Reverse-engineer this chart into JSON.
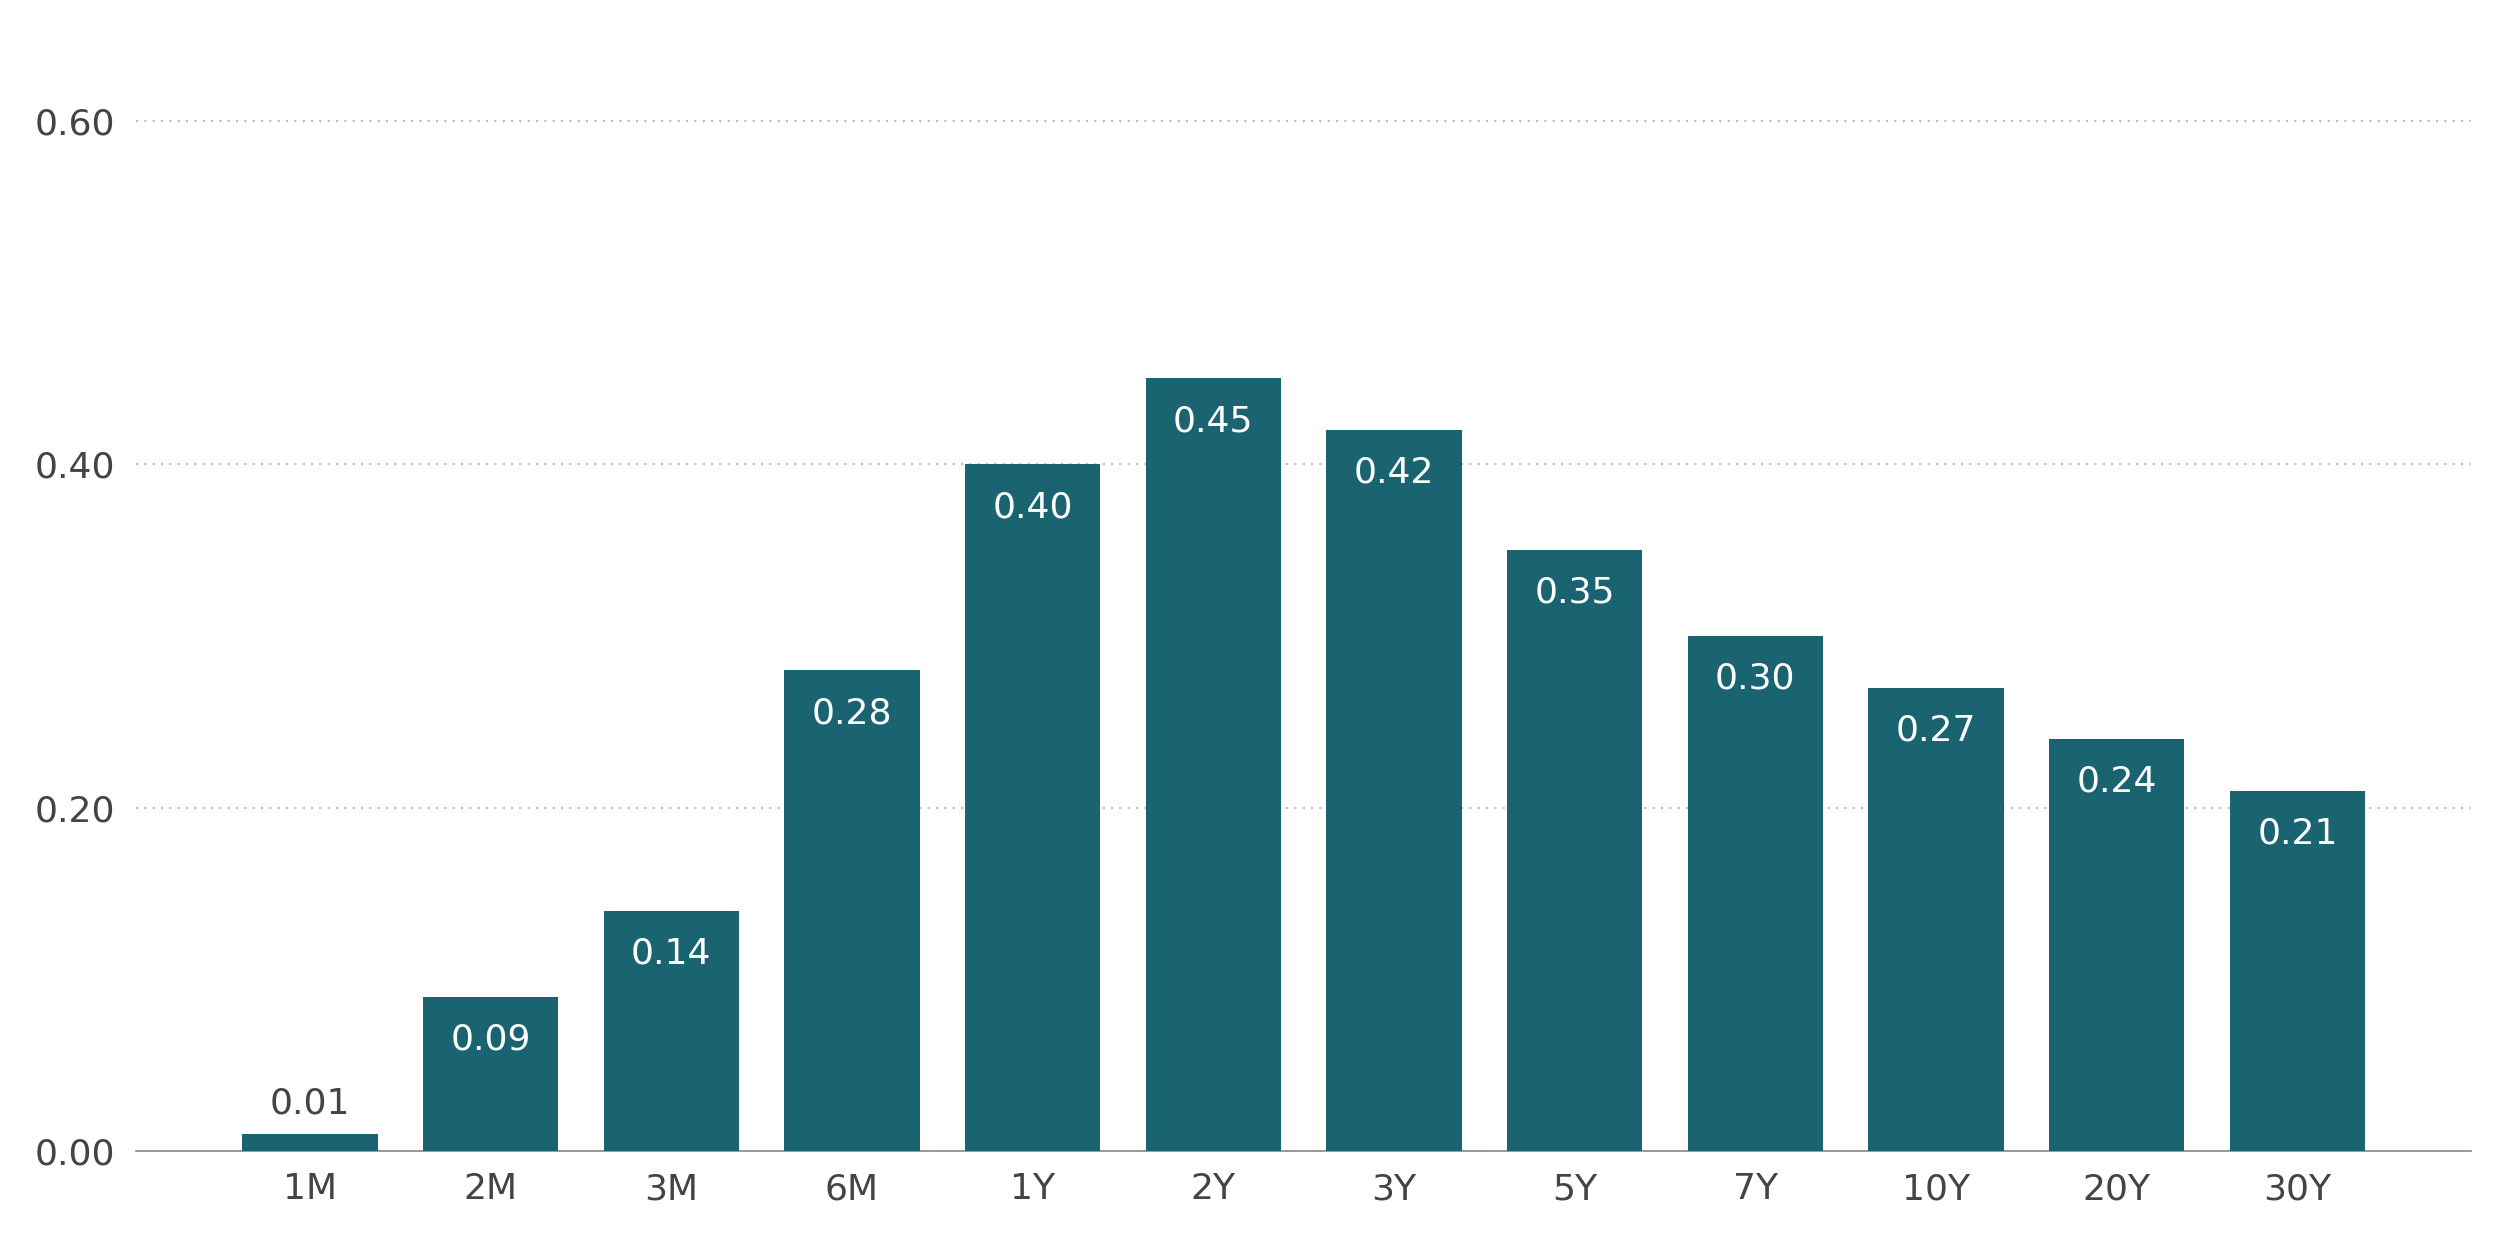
{
  "categories": [
    "1M",
    "2M",
    "3M",
    "6M",
    "1Y",
    "2Y",
    "3Y",
    "5Y",
    "7Y",
    "10Y",
    "20Y",
    "30Y"
  ],
  "values": [
    0.01,
    0.09,
    0.14,
    0.28,
    0.4,
    0.45,
    0.42,
    0.35,
    0.3,
    0.27,
    0.24,
    0.21
  ],
  "bar_color": "#1a6370",
  "label_color_inside": "#ffffff",
  "label_color_outside": "#444444",
  "label_fontsize": 26,
  "tick_label_fontsize": 26,
  "ytick_labels": [
    "0.00",
    "0.20",
    "0.40",
    "0.60"
  ],
  "ytick_values": [
    0.0,
    0.2,
    0.4,
    0.6
  ],
  "ylim": [
    0,
    0.65
  ],
  "background_color": "#ffffff",
  "grid_color": "#bbbbbb",
  "bar_width": 0.75,
  "inside_threshold": 0.08
}
